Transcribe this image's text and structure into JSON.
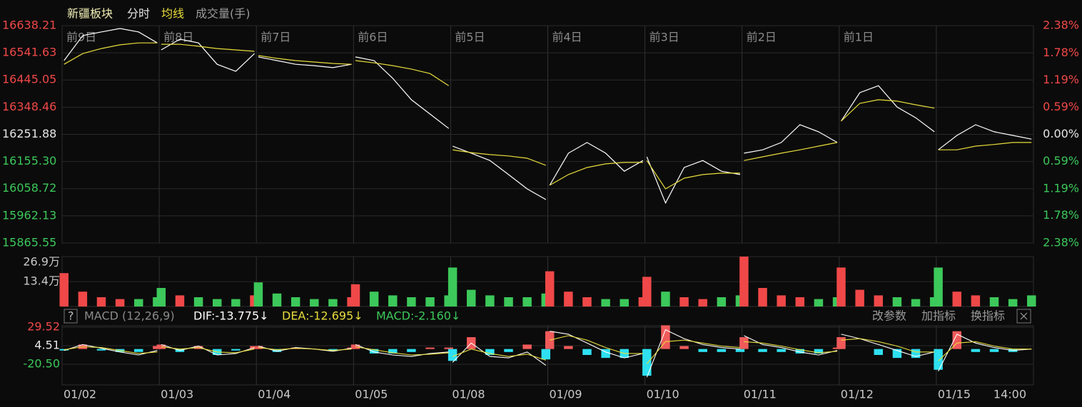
{
  "chart_data": [
    {
      "type": "line",
      "title": "新疆板块",
      "categories": [
        "前9日",
        "前8日",
        "前7日",
        "前6日",
        "前5日",
        "前4日",
        "前3日",
        "前2日",
        "前1日",
        null
      ],
      "series": [
        {
          "name": "分时",
          "color": "#ffffff",
          "values": [
            [
              16514,
              16603,
              16616,
              16628,
              16616,
              16577
            ],
            [
              16552,
              16590,
              16577,
              16501,
              16476,
              16539
            ],
            [
              16527,
              16514,
              16501,
              16496,
              16489,
              16501
            ],
            [
              16527,
              16514,
              16451,
              16375,
              16324,
              16273
            ],
            [
              16210,
              16185,
              16159,
              16109,
              16058,
              16020
            ],
            [
              16071,
              16185,
              16223,
              16185,
              16121,
              16159
            ],
            [
              16172,
              16008,
              16134,
              16159,
              16121,
              16109
            ],
            [
              16185,
              16197,
              16223,
              16286,
              16261,
              16223
            ],
            [
              16299,
              16400,
              16425,
              16349,
              16311,
              16261
            ],
            [
              16197,
              16248,
              16286,
              16261,
              16248,
              16235
            ]
          ]
        },
        {
          "name": "均线",
          "color": "#e8dc3c",
          "values": [
            [
              16501,
              16539,
              16557,
              16570,
              16577,
              16577
            ],
            [
              16572,
              16572,
              16565,
              16557,
              16552,
              16547
            ],
            [
              16532,
              16522,
              16514,
              16509,
              16504,
              16501
            ],
            [
              16514,
              16506,
              16496,
              16484,
              16468,
              16425
            ],
            [
              16197,
              16187,
              16180,
              16175,
              16167,
              16142
            ],
            [
              16071,
              16109,
              16134,
              16147,
              16152,
              16152
            ],
            [
              16159,
              16058,
              16096,
              16109,
              16114,
              16114
            ],
            [
              16159,
              16172,
              16185,
              16197,
              16210,
              16223
            ],
            [
              16299,
              16362,
              16375,
              16370,
              16357,
              16345
            ],
            [
              16197,
              16197,
              16210,
              16216,
              16223,
              16223
            ]
          ]
        }
      ],
      "ylim": [
        15865.55,
        16638.21
      ],
      "yticks": [
        16638.21,
        16541.63,
        16445.05,
        16348.46,
        16251.88,
        {
          "value": 16155.3,
          "label": "16155.30"
        },
        16058.72,
        15962.13,
        15865.55
      ],
      "y2lim": [
        -2.38,
        2.38
      ],
      "y2ticks": [
        {
          "value": 2.38,
          "label": "2.38%"
        },
        {
          "value": 1.78,
          "label": "1.78%"
        },
        {
          "value": 1.19,
          "label": "1.19%"
        },
        {
          "value": 0.59,
          "label": "0.59%"
        },
        {
          "value": 0,
          "label": "0.00%"
        },
        {
          "value": -0.59,
          "label": "0.59%"
        },
        {
          "value": -1.19,
          "label": "1.19%"
        },
        {
          "value": -1.78,
          "label": "1.78%"
        },
        {
          "value": -2.38,
          "label": "2.38%"
        }
      ],
      "grid": true,
      "up_color": "#f04848",
      "down_color": "#3cc85a"
    },
    {
      "type": "bar",
      "series": [
        {
          "name": "成交量(手)",
          "color": "#9a9a9a",
          "values": [
            [
              18,
              8,
              5,
              4,
              4,
              5
            ],
            [
              10,
              6,
              5,
              4,
              4,
              6
            ],
            [
              13,
              7,
              5,
              4,
              4,
              5
            ],
            [
              12,
              8,
              6,
              5,
              5,
              6
            ],
            [
              21,
              9,
              6,
              5,
              5,
              7
            ],
            [
              19,
              8,
              5,
              4,
              4,
              5
            ],
            [
              16,
              8,
              5,
              4,
              5,
              6
            ],
            [
              26.9,
              10,
              6,
              5,
              4,
              5
            ],
            [
              21,
              9,
              6,
              5,
              4,
              5
            ],
            [
              21,
              8,
              6,
              5,
              4,
              6
            ]
          ]
        }
      ],
      "ylim": [
        0,
        26.9
      ],
      "yticks": [
        {
          "value": 26.9,
          "label": "26.9万"
        },
        {
          "value": 13.4,
          "label": "13.4万"
        }
      ],
      "grid": true
    },
    {
      "type": "macd",
      "title": "MACD (12,26,9)",
      "readouts": [
        {
          "label": "DIF:-13.775↓",
          "color": "#ffffff"
        },
        {
          "label": "DEA:-12.695↓",
          "color": "#e8dc3c"
        },
        {
          "label": "MACD:-2.160↓",
          "color": "#3cc85a"
        }
      ],
      "buttons": [
        "改参数",
        "加指标",
        "换指标"
      ],
      "categories": [
        "01/02",
        "01/03",
        "01/04",
        "01/05",
        "01/08",
        "01/09",
        "01/10",
        "01/11",
        "01/12",
        "01/15"
      ],
      "time_label": "14:00",
      "series": [
        {
          "color": "#ffffff",
          "values": [
            [
              -2,
              6,
              1,
              -4,
              -8,
              -2
            ],
            [
              6,
              -2,
              4,
              -8,
              -6,
              2
            ],
            [
              4,
              -3,
              2,
              0,
              -3,
              1
            ],
            [
              6,
              -4,
              -8,
              -10,
              -6,
              -4
            ],
            [
              -18,
              8,
              -10,
              -12,
              -4,
              -22
            ],
            [
              24,
              20,
              8,
              -4,
              -12,
              -6
            ],
            [
              -38,
              26,
              14,
              6,
              2,
              0
            ],
            [
              18,
              6,
              2,
              -4,
              -8,
              -2
            ],
            [
              20,
              14,
              6,
              -2,
              -10,
              -4
            ],
            [
              -30,
              20,
              8,
              2,
              -2,
              0
            ]
          ]
        },
        {
          "color": "#e8dc3c",
          "values": [
            [
              -1,
              3,
              2,
              -2,
              -6,
              -4
            ],
            [
              3,
              0,
              2,
              -4,
              -5,
              0
            ],
            [
              2,
              -1,
              1,
              0,
              -2,
              0
            ],
            [
              3,
              -1,
              -5,
              -8,
              -7,
              -5
            ],
            [
              -10,
              0,
              -6,
              -10,
              -7,
              -15
            ],
            [
              12,
              18,
              12,
              2,
              -6,
              -6
            ],
            [
              -20,
              10,
              12,
              8,
              4,
              2
            ],
            [
              10,
              8,
              4,
              -1,
              -5,
              -3
            ],
            [
              12,
              14,
              10,
              4,
              -4,
              -4
            ],
            [
              -16,
              8,
              10,
              4,
              0,
              0
            ]
          ]
        },
        {
          "color": "#2ee0f0",
          "up_color": "#f05a5a",
          "values": [
            [
              -2,
              6,
              -2,
              -4,
              -4,
              4
            ],
            [
              6,
              -4,
              4,
              -8,
              -2,
              4
            ],
            [
              4,
              -4,
              2,
              0,
              -2,
              2
            ],
            [
              6,
              -6,
              -6,
              -4,
              2,
              2
            ],
            [
              -16,
              16,
              -8,
              -4,
              6,
              -14
            ],
            [
              24,
              4,
              -8,
              -12,
              -12,
              0
            ],
            [
              -36,
              32,
              4,
              -4,
              -4,
              -4
            ],
            [
              16,
              -4,
              -4,
              -6,
              -6,
              2
            ],
            [
              16,
              0,
              -8,
              -12,
              -12,
              0
            ],
            [
              -28,
              24,
              -4,
              -4,
              -4,
              0
            ]
          ]
        }
      ],
      "ylim": [
        -48.4,
        31.4
      ],
      "yticks": [
        29.52,
        4.51,
        {
          "value": -20.5,
          "label": "-20.50"
        }
      ],
      "grid": true
    }
  ]
}
